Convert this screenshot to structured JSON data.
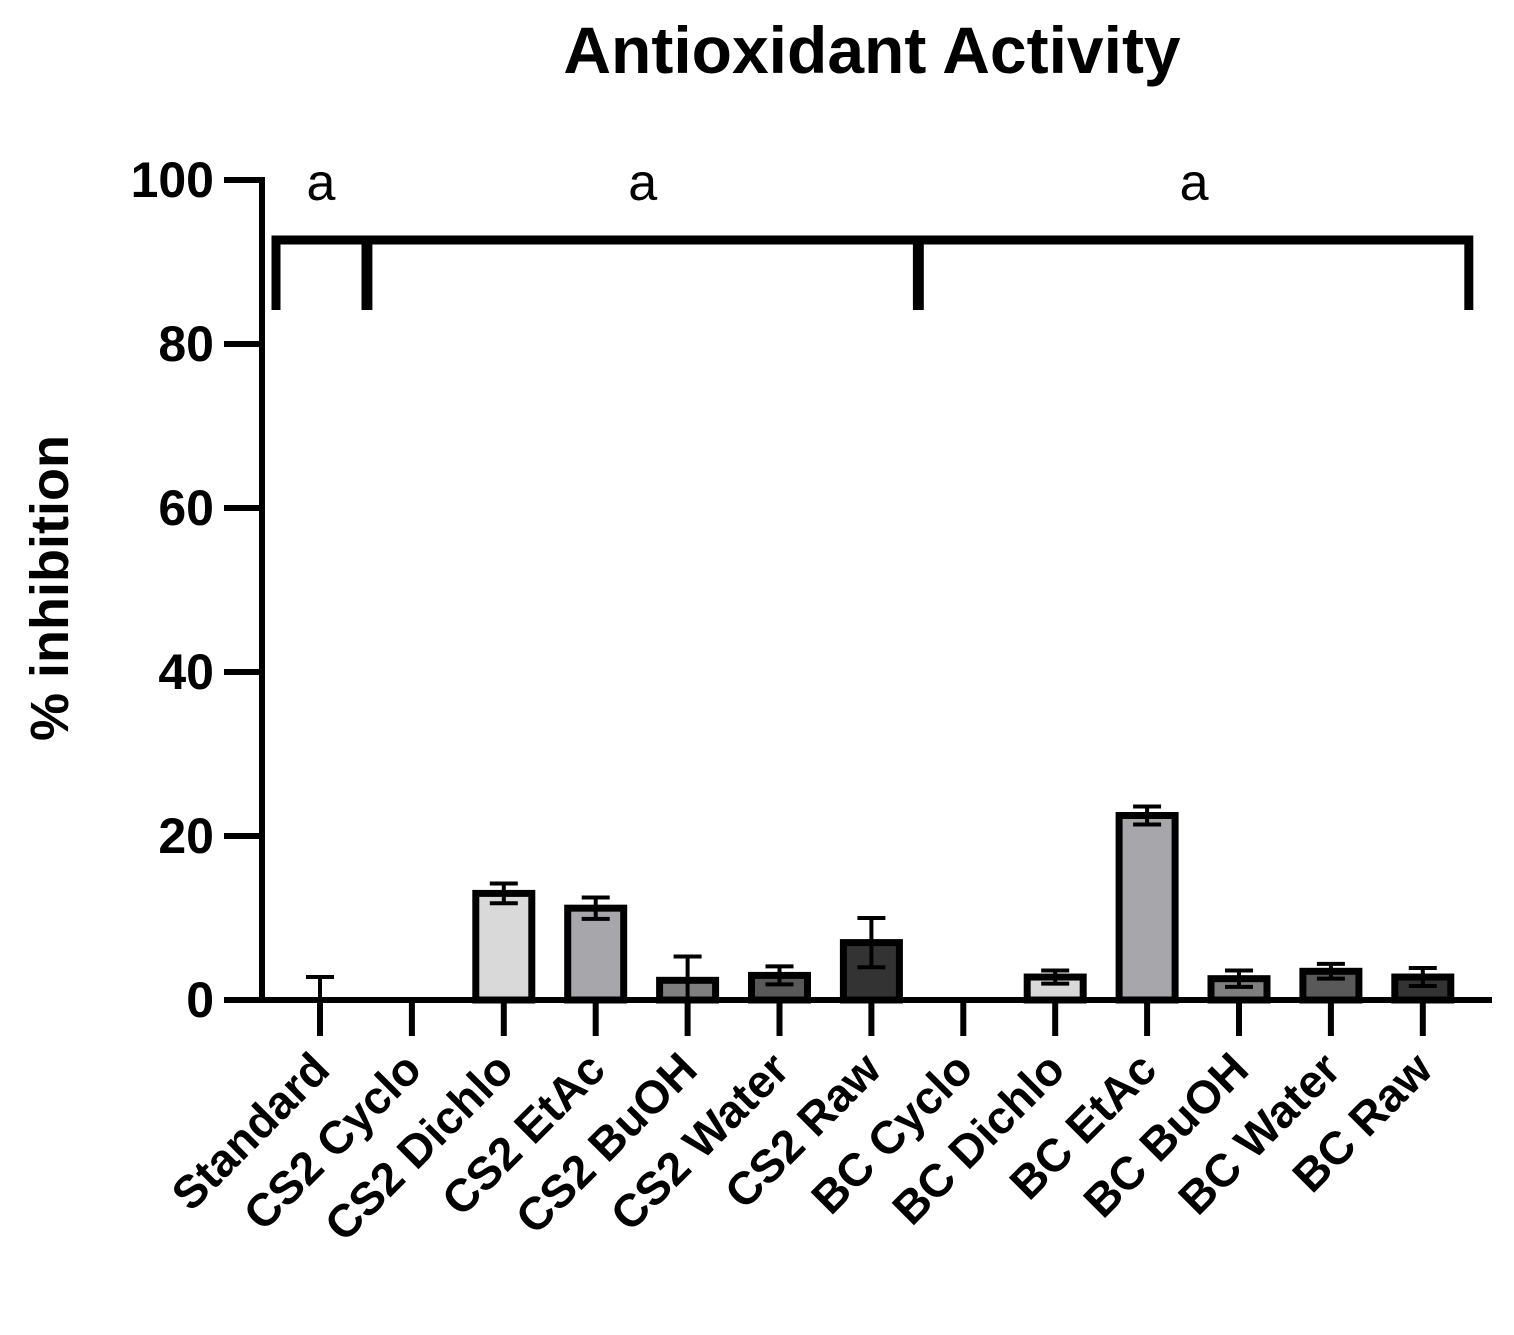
{
  "chart_data": {
    "type": "bar",
    "title": "Antioxidant Activity",
    "xlabel": "",
    "ylabel": "% inhibition",
    "ylim": [
      0,
      100
    ],
    "yticks": [
      "0",
      "20",
      "40",
      "60",
      "80",
      "100"
    ],
    "grid": false,
    "legend": "none",
    "categories": [
      "Standard",
      "CS2 Cyclo",
      "CS2 Dichlo",
      "CS2 EtAc",
      "CS2 BuOH",
      "CS2 Water",
      "CS2 Raw",
      "BC Cyclo",
      "BC Dichlo",
      "BC EtAc",
      "BC BuOH",
      "BC Water",
      "BC Raw"
    ],
    "values": [
      0,
      0,
      13,
      11.2,
      2.4,
      3,
      7,
      0,
      2.8,
      22.5,
      2.6,
      3.5,
      2.8
    ],
    "errors": [
      2.8,
      0,
      1.2,
      1.3,
      2.9,
      1.1,
      3,
      0,
      0.8,
      1.1,
      1,
      0.9,
      1.1
    ],
    "bar_colors": [
      "#ffffff",
      "#ffffff",
      "#d9d9d9",
      "#a6a6ab",
      "#7f7f7f",
      "#595959",
      "#333333",
      "#ffffff",
      "#d9d9d9",
      "#a6a6ab",
      "#7f7f7f",
      "#595959",
      "#333333"
    ],
    "significance_groups": [
      {
        "label": "a",
        "from": 0,
        "to": 0
      },
      {
        "label": "a",
        "from": 1,
        "to": 6
      },
      {
        "label": "a",
        "from": 7,
        "to": 12
      }
    ]
  }
}
